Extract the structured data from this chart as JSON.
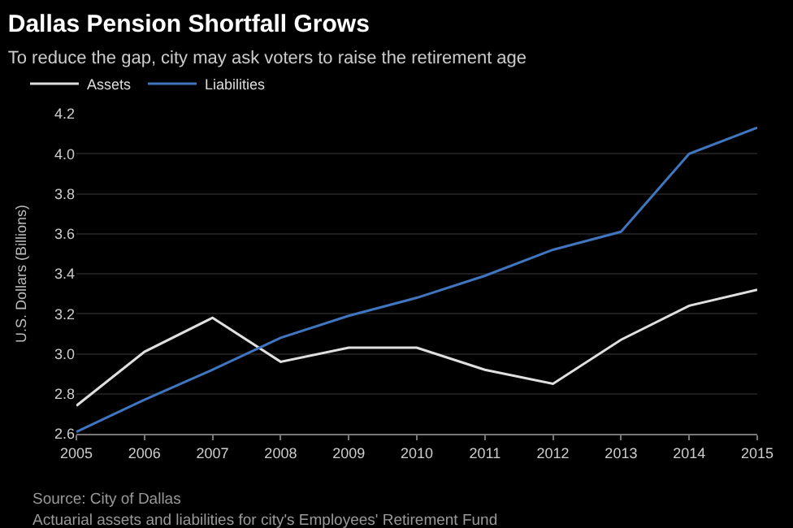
{
  "chart_data": {
    "type": "line",
    "title": "Dallas Pension Shortfall Grows",
    "subtitle": "To reduce the gap, city may ask voters to raise the retirement age",
    "ylabel": "U.S. Dollars (Billions)",
    "x": [
      2005,
      2006,
      2007,
      2008,
      2009,
      2010,
      2011,
      2012,
      2013,
      2014,
      2015
    ],
    "series": [
      {
        "name": "Assets",
        "color": "#e0e0e0",
        "values": [
          2.74,
          3.01,
          3.18,
          2.96,
          3.03,
          3.03,
          2.92,
          2.85,
          3.07,
          3.24,
          3.32
        ]
      },
      {
        "name": "Liabilities",
        "color": "#3f76bf",
        "values": [
          2.61,
          2.77,
          2.92,
          3.08,
          3.19,
          3.28,
          3.39,
          3.52,
          3.61,
          4.0,
          4.13
        ]
      }
    ],
    "xlim": [
      2005,
      2015
    ],
    "xticks": [
      2005,
      2006,
      2007,
      2008,
      2009,
      2010,
      2011,
      2012,
      2013,
      2014,
      2015
    ],
    "ylim": [
      2.6,
      4.2
    ],
    "yticks": [
      2.6,
      2.8,
      {
        "value": 3,
        "label": "3.0"
      },
      3.2,
      3.4,
      3.6,
      3.8,
      {
        "value": 4,
        "label": "4.0"
      },
      4.2
    ],
    "grid": "y",
    "legend": "top left",
    "marker": "none",
    "line_style": "solid",
    "annotations": [
      "Source: City of Dallas",
      "Actuarial assets and liabilities for city's Employees' Retirement Fund"
    ]
  }
}
